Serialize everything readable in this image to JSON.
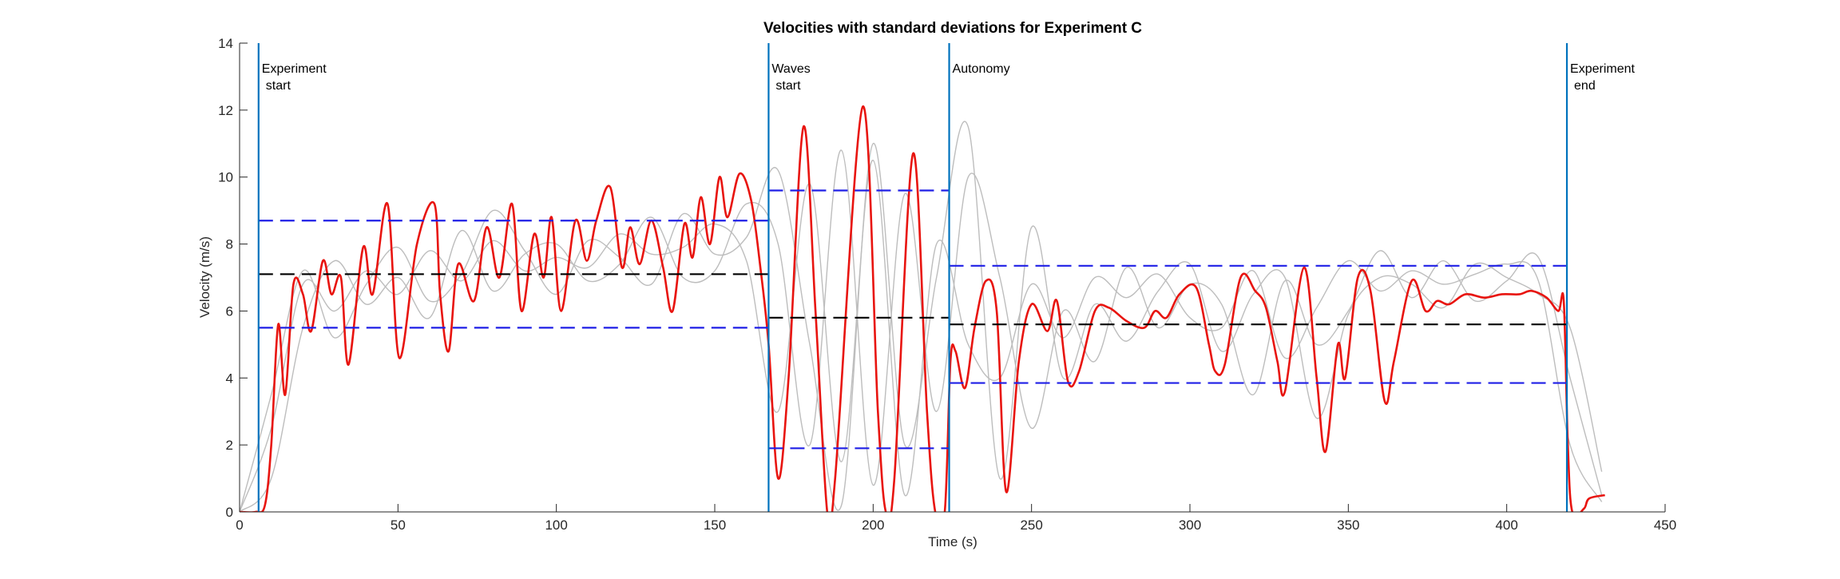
{
  "chart_data": {
    "type": "line",
    "title": "Velocities with standard deviations for Experiment C",
    "x_label": "Time (s)",
    "y_label": "Velocity (m/s)",
    "xlim": [
      0,
      450
    ],
    "ylim": [
      0,
      14
    ],
    "xticks": [
      0,
      50,
      100,
      150,
      200,
      250,
      300,
      350,
      400,
      450
    ],
    "yticks": [
      0,
      2,
      4,
      6,
      8,
      10,
      12,
      14
    ],
    "grid": false,
    "series": [
      {
        "color": "#bdbdbd",
        "x": [
          0,
          10,
          20,
          30,
          40,
          50,
          60,
          70,
          80,
          90,
          100,
          110,
          120,
          130,
          140,
          150,
          160,
          170,
          180,
          190,
          200,
          210,
          220,
          230,
          240,
          250,
          260,
          270,
          280,
          290,
          300,
          310,
          320,
          330,
          340,
          350,
          360,
          370,
          380,
          390,
          400,
          410,
          420,
          430
        ],
        "values": [
          0,
          2.5,
          6.8,
          6,
          7.2,
          6.5,
          7.8,
          6.9,
          8.1,
          7.2,
          7.6,
          7.3,
          8.3,
          7.7,
          7.9,
          8.6,
          7.5,
          3,
          9.8,
          1.5,
          10.5,
          0.5,
          8,
          5,
          4,
          6.8,
          5.2,
          7,
          6.4,
          7.1,
          5.8,
          5.5,
          7.2,
          4.6,
          6.1,
          7.5,
          6.6,
          7.2,
          6.8,
          7.1,
          7.4,
          6.9,
          2,
          0.3
        ]
      },
      {
        "color": "#bdbdbd",
        "x": [
          0,
          10,
          20,
          30,
          40,
          50,
          60,
          70,
          80,
          90,
          100,
          110,
          120,
          130,
          140,
          150,
          160,
          170,
          180,
          190,
          200,
          210,
          220,
          230,
          240,
          250,
          260,
          270,
          280,
          290,
          300,
          310,
          320,
          330,
          340,
          350,
          360,
          370,
          380,
          390,
          400,
          410,
          420,
          430
        ],
        "values": [
          0,
          1,
          5.5,
          7.5,
          6.2,
          7,
          5.8,
          8.4,
          6.6,
          7.7,
          8,
          6.9,
          7.4,
          8.8,
          7,
          7.2,
          9.2,
          8,
          2,
          10.8,
          0.8,
          9.5,
          3,
          10,
          7,
          2.5,
          6,
          4.5,
          7.3,
          5.5,
          6.8,
          6.2,
          3.5,
          6.9,
          5,
          6,
          7.8,
          6.4,
          7.5,
          6.3,
          6.9,
          7.6,
          4,
          0.5
        ]
      },
      {
        "color": "#bdbdbd",
        "x": [
          0,
          10,
          20,
          30,
          40,
          50,
          60,
          70,
          80,
          90,
          100,
          110,
          120,
          130,
          140,
          150,
          160,
          170,
          180,
          190,
          200,
          210,
          220,
          230,
          240,
          250,
          260,
          270,
          280,
          290,
          300,
          310,
          320,
          330,
          340,
          350,
          360,
          370,
          380,
          390,
          400,
          410,
          420,
          430
        ],
        "values": [
          0,
          3.5,
          7.2,
          5.2,
          6.8,
          7.9,
          6.3,
          7.1,
          9,
          7.8,
          6.5,
          8.1,
          7.6,
          6.8,
          8.9,
          7.7,
          8.2,
          10.2,
          5,
          0.2,
          11,
          2,
          7,
          11.5,
          1,
          8.5,
          4,
          6.2,
          5.1,
          6.6,
          7.4,
          4.8,
          6.5,
          7,
          2.8,
          5.9,
          7,
          6.8,
          6.1,
          7.4,
          7,
          6.5,
          5.5,
          1.2
        ]
      },
      {
        "color": "#e8140f",
        "x": [
          0,
          5,
          8,
          10,
          12.2,
          14.4,
          17,
          20,
          22.6,
          26.3,
          29,
          32,
          34.4,
          39,
          42,
          46.7,
          50.4,
          56,
          61.5,
          63.3,
          66,
          69,
          74,
          78,
          82,
          86,
          89,
          93,
          96,
          98.5,
          101.5,
          106,
          109.6,
          112.6,
          117,
          120.7,
          123.3,
          126.3,
          130,
          133.7,
          136.7,
          140.4,
          143,
          145.6,
          148.5,
          151.5,
          154,
          157.8,
          161.5,
          164.4,
          167,
          170,
          173.3,
          178,
          181.8,
          185.5,
          188,
          196.7,
          201.5,
          204,
          206.7,
          212.6,
          217,
          219.6,
          222.6,
          224.4,
          226,
          229,
          232,
          235.6,
          239,
          242,
          246,
          250,
          255,
          258,
          261.5,
          265,
          270,
          274.4,
          280,
          285.6,
          289,
          292.6,
          296.7,
          302,
          306,
          308,
          311,
          316,
          320.6,
          324,
          327.6,
          330,
          336,
          340,
          342.8,
          346.7,
          349,
          353,
          357,
          361.5,
          364.4,
          370,
          374.4,
          378,
          381.8,
          387,
          393,
          398.5,
          404,
          407.8,
          412.6,
          416.3,
          418,
          419.3,
          420.7,
          424.4,
          426,
          431
        ],
        "values": [
          0,
          0,
          0.2,
          2,
          5.6,
          3.5,
          6.8,
          6.5,
          5.4,
          7.5,
          6.5,
          7,
          4.4,
          7.9,
          6.5,
          9.2,
          4.6,
          8,
          9.2,
          6.5,
          4.8,
          7.4,
          6.3,
          8.5,
          7,
          9.2,
          6,
          8.3,
          7,
          8.8,
          6,
          8.7,
          7.5,
          8.7,
          9.7,
          7.3,
          8.5,
          7.4,
          8.7,
          7.3,
          6,
          8.6,
          7.6,
          9.4,
          8,
          10,
          8.8,
          10.1,
          9.3,
          7.3,
          5,
          1,
          4,
          11.5,
          6,
          0,
          1,
          12.1,
          3,
          0,
          1,
          10.7,
          3,
          0,
          0,
          4.5,
          4.8,
          3.7,
          5.5,
          6.9,
          6,
          0.6,
          4.5,
          6.2,
          5.4,
          6.3,
          3.9,
          4.2,
          6,
          6.1,
          5.7,
          5.5,
          6,
          5.8,
          6.5,
          6.7,
          5,
          4.2,
          4.4,
          7,
          6.6,
          6.1,
          4.5,
          3.6,
          7.3,
          4,
          1.8,
          5,
          4,
          7,
          6.6,
          3.3,
          4.5,
          6.9,
          6,
          6.3,
          6.2,
          6.5,
          6.4,
          6.5,
          6.5,
          6.6,
          6.4,
          6,
          6.3,
          2,
          0,
          0.1,
          0.4,
          0.5
        ]
      }
    ],
    "reference_lines": [
      {
        "x": [
          6,
          167
        ],
        "value": 8.7,
        "color": "#1f1fe6"
      },
      {
        "x": [
          6,
          167
        ],
        "value": 7.1,
        "color": "#000000"
      },
      {
        "x": [
          6,
          167
        ],
        "value": 5.5,
        "color": "#1f1fe6"
      },
      {
        "x": [
          167,
          224
        ],
        "value": 9.6,
        "color": "#1f1fe6"
      },
      {
        "x": [
          167,
          224
        ],
        "value": 5.8,
        "color": "#000000"
      },
      {
        "x": [
          167,
          224
        ],
        "value": 1.9,
        "color": "#1f1fe6"
      },
      {
        "x": [
          224,
          419
        ],
        "value": 7.35,
        "color": "#1f1fe6"
      },
      {
        "x": [
          224,
          419
        ],
        "value": 5.6,
        "color": "#000000"
      },
      {
        "x": [
          224,
          419
        ],
        "value": 3.85,
        "color": "#1f1fe6"
      }
    ],
    "events": [
      {
        "x": 6,
        "label": [
          "Experiment",
          "start"
        ]
      },
      {
        "x": 167,
        "label": [
          "Waves",
          "start"
        ]
      },
      {
        "x": 224,
        "label": [
          "Autonomy"
        ]
      },
      {
        "x": 419,
        "label": [
          "Experiment",
          "end"
        ]
      }
    ],
    "event_color": "#0072bd"
  }
}
